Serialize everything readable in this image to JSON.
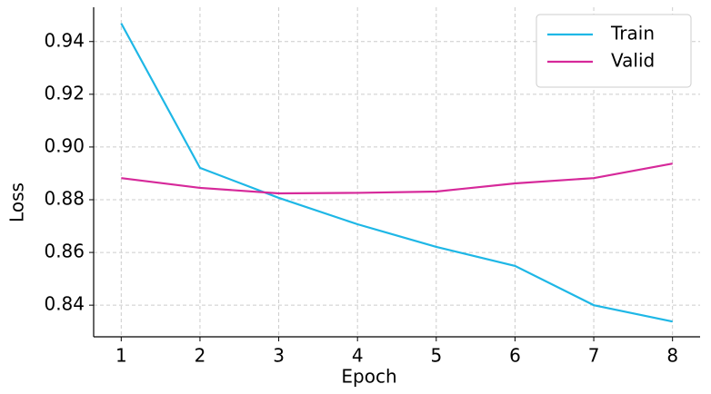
{
  "chart_data": {
    "type": "line",
    "x_label": "Epoch",
    "y_label": "Loss",
    "x": [
      1,
      2,
      3,
      4,
      5,
      6,
      7,
      8
    ],
    "series": [
      {
        "name": "Train",
        "color": "#1eb7e6",
        "values": [
          0.9469,
          0.8921,
          0.8807,
          0.8707,
          0.8621,
          0.8549,
          0.84,
          0.8338
        ]
      },
      {
        "name": "Valid",
        "color": "#d6299a",
        "values": [
          0.8882,
          0.8845,
          0.8824,
          0.8826,
          0.8831,
          0.8862,
          0.8882,
          0.8937
        ]
      }
    ],
    "xlim": [
      0.65,
      8.35
    ],
    "ylim": [
      0.828,
      0.953
    ],
    "xticks": [
      1,
      2,
      3,
      4,
      5,
      6,
      7,
      8
    ],
    "yticks": [
      0.84,
      0.86,
      0.88,
      {
        "value": 0.9,
        "label": "0.90"
      },
      0.92,
      0.94
    ],
    "grid": true,
    "legend": "upper right"
  }
}
